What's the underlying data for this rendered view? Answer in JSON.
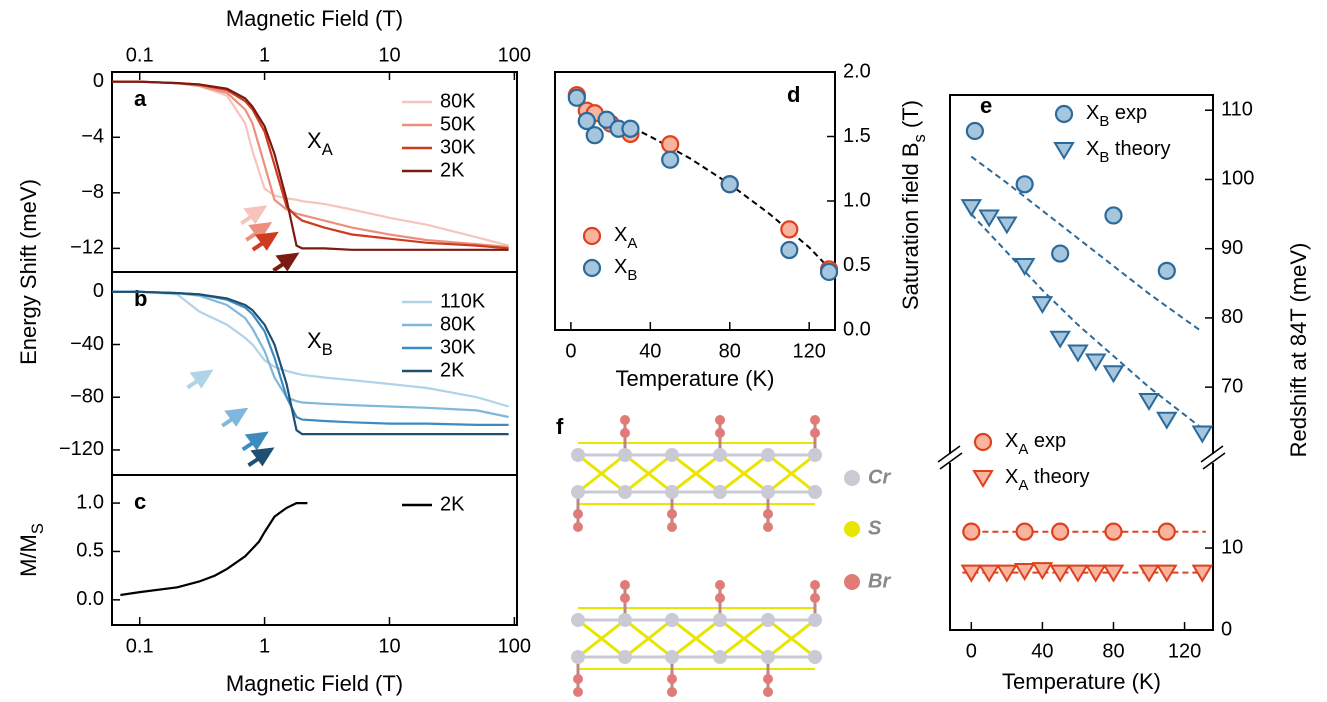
{
  "chart_data": [
    {
      "type": "line",
      "label": "a",
      "xlabel": "Magnetic Field (T)",
      "xaxis": "top",
      "ylabel": "Energy Shift (meV)",
      "annotation": [
        "X",
        "A"
      ],
      "log_x": true,
      "xlim": [
        0.06,
        105
      ],
      "xticks": [
        0.1,
        1,
        10,
        100
      ],
      "ylim": [
        -13.7,
        0.7
      ],
      "yticks": [
        0,
        {
          "value": -4,
          "label": "−4"
        },
        {
          "value": -8,
          "label": "−8"
        },
        {
          "value": -12,
          "label": "−12"
        }
      ],
      "legend": "upper right",
      "x": [
        0.06,
        0.1,
        0.2,
        0.3,
        0.5,
        0.7,
        0.8,
        1,
        1.2,
        1.5,
        1.8,
        2,
        3,
        5,
        10,
        20,
        50,
        90
      ],
      "series": [
        {
          "name": "80K",
          "color": "#f6c4bb",
          "arrow": [
            1.05,
            -8.9
          ],
          "values": [
            0,
            0,
            -0.1,
            -0.3,
            -1,
            -3,
            -5,
            -7.7,
            -8.2,
            -8.4,
            -8.5,
            -8.6,
            -8.8,
            -9.2,
            -9.8,
            -10.3,
            -11.2,
            -11.8
          ]
        },
        {
          "name": "50K",
          "color": "#ec8f7c",
          "arrow": [
            1.15,
            -10.1
          ],
          "values": [
            0,
            0,
            -0.1,
            -0.3,
            -0.8,
            -2,
            -3,
            -6,
            -8.5,
            -9.2,
            -9.5,
            -9.6,
            -10,
            -10.5,
            -11,
            -11.4,
            -11.7,
            -11.9
          ]
        },
        {
          "name": "30K",
          "color": "#cf3b1e",
          "arrow": [
            1.3,
            -10.8
          ],
          "values": [
            0,
            0,
            -0.1,
            -0.2,
            -0.6,
            -1.4,
            -2,
            -3.6,
            -6,
            -9,
            -9.7,
            -10,
            -10.5,
            -11,
            -11.3,
            -11.6,
            -11.8,
            -12
          ]
        },
        {
          "name": "2K",
          "color": "#7a1a10",
          "arrow": [
            1.9,
            -12.3
          ],
          "values": [
            0,
            0,
            -0.1,
            -0.2,
            -0.5,
            -1.2,
            -1.8,
            -3.2,
            -5.2,
            -8.5,
            -11.8,
            -12,
            -12,
            -12.1,
            -12.1,
            -12.1,
            -12.1,
            -12.1
          ]
        }
      ]
    },
    {
      "type": "line",
      "label": "b",
      "annotation": [
        "X",
        "B"
      ],
      "log_x": true,
      "xlim": [
        0.06,
        105
      ],
      "ylim": [
        -139,
        15
      ],
      "yticks": [
        0,
        {
          "value": -40,
          "label": "−40"
        },
        {
          "value": -80,
          "label": "−80"
        },
        {
          "value": -120,
          "label": "−120"
        }
      ],
      "legend": "upper right",
      "x": [
        0.06,
        0.1,
        0.2,
        0.3,
        0.5,
        0.7,
        0.8,
        1,
        1.2,
        1.5,
        1.8,
        2,
        3,
        5,
        10,
        20,
        50,
        90
      ],
      "series": [
        {
          "name": "110K",
          "color": "#b0d3e8",
          "arrow": [
            0.39,
            -59
          ],
          "values": [
            0,
            0,
            -2,
            -15,
            -25,
            -35,
            -40,
            -52,
            -57,
            -60,
            -62,
            -63,
            -65,
            -67,
            -70,
            -73,
            -80,
            -87
          ]
        },
        {
          "name": "80K",
          "color": "#80b7dc",
          "arrow": [
            0.74,
            -88
          ],
          "values": [
            0,
            0,
            -1,
            -3,
            -10,
            -20,
            -28,
            -45,
            -65,
            -80,
            -83,
            -84,
            -85,
            -86,
            -87,
            -88,
            -90,
            -95
          ]
        },
        {
          "name": "30K",
          "color": "#3d8bbf",
          "arrow": [
            1.08,
            -106
          ],
          "values": [
            0,
            0,
            -1,
            -2,
            -6,
            -12,
            -17,
            -30,
            -50,
            -80,
            -95,
            -97,
            -98,
            -99,
            -100,
            -100,
            -101,
            -101
          ]
        },
        {
          "name": "2K",
          "color": "#1f4f73",
          "arrow": [
            1.2,
            -118
          ],
          "values": [
            0,
            0,
            -1,
            -2,
            -5,
            -10,
            -14,
            -25,
            -40,
            -70,
            -105,
            -108,
            -108,
            -108,
            -108,
            -108,
            -108,
            -108
          ]
        }
      ]
    },
    {
      "type": "line",
      "label": "c",
      "xlabel": "Magnetic Field (T)",
      "xaxis": "bottom",
      "ylabel": [
        "M/M",
        "S"
      ],
      "log_x": true,
      "xlim": [
        0.06,
        105
      ],
      "xticks": [
        0.1,
        1,
        10,
        100
      ],
      "ylim": [
        -0.26,
        1.29
      ],
      "yticks": [
        {
          "value": 0,
          "label": "0.0"
        },
        {
          "value": 0.5,
          "label": "0.5"
        },
        {
          "value": 1,
          "label": "1.0"
        }
      ],
      "legend": "upper right",
      "x": [
        0.07,
        0.1,
        0.2,
        0.3,
        0.4,
        0.5,
        0.7,
        0.9,
        1,
        1.2,
        1.5,
        1.8,
        2.2
      ],
      "series": [
        {
          "name": "2K",
          "color": "#000000",
          "values": [
            0.05,
            0.08,
            0.13,
            0.19,
            0.25,
            0.32,
            0.45,
            0.6,
            0.7,
            0.86,
            0.95,
            1.0,
            1.0
          ]
        }
      ]
    },
    {
      "type": "scatter",
      "label": "d",
      "xlabel": "Temperature (K)",
      "xaxis": "bottom",
      "ylabel": [
        "Saturation field B",
        "s",
        " (T)"
      ],
      "yaxis": "right",
      "xlim": [
        -8,
        133
      ],
      "xticks": [
        0,
        40,
        80,
        120
      ],
      "ylim": [
        0,
        2
      ],
      "yticks": [
        {
          "value": 0,
          "label": "0.0"
        },
        {
          "value": 0.5,
          "label": "0.5"
        },
        {
          "value": 1,
          "label": "1.0"
        },
        {
          "value": 1.5,
          "label": "1.5"
        },
        {
          "value": 2,
          "label": "2.0"
        }
      ],
      "legend": "lower left",
      "series": [
        {
          "name": [
            "X",
            "A"
          ],
          "marker": "o",
          "color": "#e0401e",
          "fill": "#f8b49c",
          "x": [
            3,
            8,
            12,
            20,
            30,
            50,
            80,
            110,
            130
          ],
          "values": [
            1.82,
            1.7,
            1.68,
            1.6,
            1.52,
            1.44,
            1.13,
            0.78,
            0.47
          ]
        },
        {
          "name": [
            "X",
            "B"
          ],
          "marker": "o",
          "color": "#2b6a9a",
          "fill": "#a6c6de",
          "x": [
            3,
            8,
            12,
            18,
            24,
            30,
            50,
            80,
            110,
            130
          ],
          "values": [
            1.8,
            1.62,
            1.51,
            1.63,
            1.56,
            1.56,
            1.32,
            1.13,
            0.62,
            0.45
          ]
        }
      ],
      "fits": [
        {
          "color": "#000000",
          "x": [
            0,
            20,
            40,
            60,
            80,
            100,
            120,
            130
          ],
          "values": [
            1.82,
            1.65,
            1.5,
            1.33,
            1.13,
            0.9,
            0.64,
            0.48
          ]
        }
      ]
    },
    {
      "type": "scatter",
      "label": "e",
      "ylabel": "Redshift at 84T (meV)",
      "yaxis": "right",
      "xlim": [
        -12,
        136
      ],
      "ylim": [
        60.2,
        112.2
      ],
      "yticks": [
        70,
        80,
        90,
        100,
        110
      ],
      "legend": "upper center",
      "series": [
        {
          "name": [
            "X",
            "B",
            " exp"
          ],
          "marker": "o",
          "color": "#2b6a9a",
          "fill": "#a6c6de",
          "x": [
            2,
            30,
            50,
            80,
            110
          ],
          "values": [
            107,
            99.3,
            89.3,
            94.8,
            86.8
          ]
        },
        {
          "name": [
            "X",
            "B",
            " theory"
          ],
          "marker": "v",
          "color": "#2b6a9a",
          "fill": "#a6c6de",
          "x": [
            0,
            10,
            20,
            30,
            40,
            50,
            60,
            70,
            80,
            100,
            110,
            130
          ],
          "values": [
            96,
            94.5,
            93.5,
            87.5,
            82,
            77,
            75,
            73.7,
            72,
            68,
            65.3,
            63.3
          ]
        }
      ],
      "fits": [
        {
          "color": "#2b6a9a",
          "x": [
            0,
            20,
            40,
            60,
            80,
            100,
            120,
            130
          ],
          "values": [
            103.3,
            99.5,
            95.5,
            91.5,
            87.5,
            83.5,
            79.8,
            78
          ]
        },
        {
          "color": "#2b6a9a",
          "x": [
            0,
            20,
            40,
            60,
            80,
            100,
            120,
            130
          ],
          "values": [
            95,
            89.5,
            84,
            79,
            74.5,
            70,
            66,
            64
          ]
        }
      ]
    },
    {
      "type": "scatter",
      "xlabel": "Temperature (K)",
      "xaxis": "bottom",
      "yaxis": "right",
      "xlim": [
        -12,
        136
      ],
      "xticks": [
        0,
        40,
        80,
        120
      ],
      "ylim": [
        0,
        20.5
      ],
      "yticks": [
        0,
        10
      ],
      "legend": "upper left",
      "series": [
        {
          "name": [
            "X",
            "A",
            " exp"
          ],
          "marker": "o",
          "color": "#e0401e",
          "fill": "#f8b49c",
          "x": [
            0,
            30,
            50,
            80,
            110
          ],
          "values": [
            12,
            12,
            12,
            12,
            12
          ]
        },
        {
          "name": [
            "X",
            "A",
            " theory"
          ],
          "marker": "v",
          "color": "#e0401e",
          "fill": "#f8b49c",
          "x": [
            0,
            10,
            20,
            30,
            40,
            50,
            60,
            70,
            80,
            100,
            110,
            130
          ],
          "values": [
            7,
            7,
            7,
            7.2,
            7.3,
            7,
            7,
            7,
            7,
            7,
            7,
            7
          ]
        }
      ],
      "fits": [
        {
          "color": "#e0401e",
          "x": [
            -5,
            132
          ],
          "values": [
            12,
            12
          ]
        },
        {
          "color": "#e0401e",
          "x": [
            -5,
            132
          ],
          "values": [
            7,
            7
          ]
        }
      ]
    }
  ],
  "panel_f": {
    "label": "f",
    "atoms": [
      "Cr",
      "S",
      "Br"
    ]
  }
}
